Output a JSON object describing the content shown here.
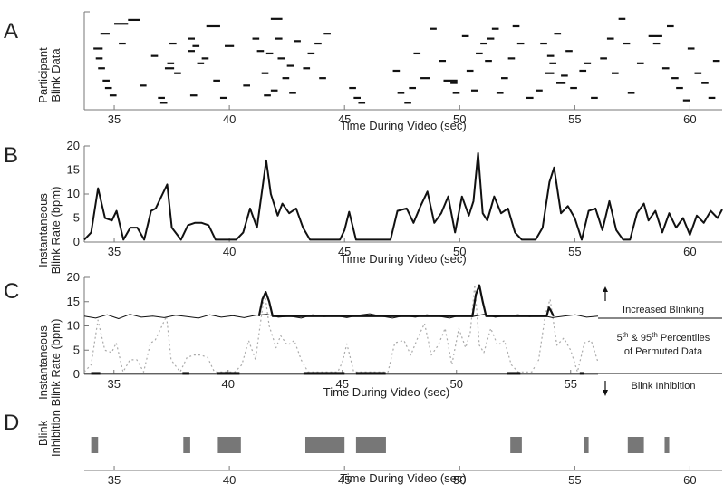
{
  "chart_data": [
    {
      "panel": "A",
      "type": "scatter",
      "xlabel": "Time During Video (sec)",
      "ylabel_lines": [
        "Participant",
        "Blink Data"
      ],
      "xlim": [
        33.7,
        61.4
      ],
      "xticks": [
        35,
        40,
        45,
        50,
        55,
        60
      ],
      "blinks": [
        [
          34.1,
          11.5,
          0.4
        ],
        [
          34.2,
          9.5,
          0.3
        ],
        [
          34.3,
          7.5,
          0.3
        ],
        [
          34.5,
          5.0,
          0.3
        ],
        [
          34.6,
          3.5,
          0.3
        ],
        [
          34.8,
          2.0,
          0.3
        ],
        [
          34.4,
          14.5,
          0.4
        ],
        [
          35.0,
          16.5,
          0.6
        ],
        [
          35.2,
          12.5,
          0.3
        ],
        [
          35.6,
          17.3,
          0.5
        ],
        [
          36.1,
          4.0,
          0.3
        ],
        [
          36.6,
          10.0,
          0.3
        ],
        [
          36.9,
          1.5,
          0.3
        ],
        [
          37.0,
          0.5,
          0.3
        ],
        [
          37.2,
          7.5,
          0.4
        ],
        [
          37.3,
          8.5,
          0.3
        ],
        [
          37.4,
          12.5,
          0.3
        ],
        [
          37.6,
          6.5,
          0.3
        ],
        [
          38.2,
          11.0,
          0.3
        ],
        [
          38.4,
          12.0,
          0.3
        ],
        [
          38.6,
          8.5,
          0.3
        ],
        [
          38.8,
          9.5,
          0.3
        ],
        [
          38.2,
          13.5,
          0.3
        ],
        [
          39.0,
          16.0,
          0.6
        ],
        [
          38.3,
          2.0,
          0.3
        ],
        [
          39.3,
          5.0,
          0.3
        ],
        [
          39.6,
          1.5,
          0.3
        ],
        [
          39.8,
          12.0,
          0.4
        ],
        [
          40.6,
          4.0,
          0.3
        ],
        [
          41.0,
          13.5,
          0.3
        ],
        [
          41.2,
          11.0,
          0.3
        ],
        [
          41.4,
          6.5,
          0.3
        ],
        [
          41.6,
          10.5,
          0.3
        ],
        [
          41.8,
          3.0,
          0.3
        ],
        [
          41.8,
          17.5,
          0.5
        ],
        [
          42.0,
          13.5,
          0.3
        ],
        [
          42.1,
          9.5,
          0.3
        ],
        [
          42.3,
          5.5,
          0.3
        ],
        [
          42.5,
          8.0,
          0.3
        ],
        [
          42.6,
          2.5,
          0.3
        ],
        [
          42.8,
          13.0,
          0.3
        ],
        [
          41.5,
          2.0,
          0.3
        ],
        [
          43.2,
          7.5,
          0.3
        ],
        [
          43.4,
          10.5,
          0.3
        ],
        [
          43.7,
          12.5,
          0.3
        ],
        [
          43.9,
          5.5,
          0.3
        ],
        [
          44.1,
          14.5,
          0.3
        ],
        [
          45.2,
          3.5,
          0.3
        ],
        [
          45.4,
          1.5,
          0.3
        ],
        [
          45.6,
          0.5,
          0.3
        ],
        [
          47.1,
          7.0,
          0.3
        ],
        [
          47.3,
          2.5,
          0.3
        ],
        [
          47.6,
          0.5,
          0.3
        ],
        [
          47.8,
          3.5,
          0.3
        ],
        [
          48.0,
          10.5,
          0.3
        ],
        [
          48.3,
          5.5,
          0.4
        ],
        [
          48.7,
          15.5,
          0.3
        ],
        [
          49.1,
          9.0,
          0.3
        ],
        [
          49.3,
          5.0,
          0.6
        ],
        [
          49.6,
          4.5,
          0.3
        ],
        [
          49.7,
          2.5,
          0.3
        ],
        [
          50.1,
          14.0,
          0.3
        ],
        [
          50.3,
          7.0,
          0.3
        ],
        [
          50.5,
          3.0,
          0.3
        ],
        [
          50.7,
          10.5,
          0.3
        ],
        [
          50.9,
          12.5,
          0.3
        ],
        [
          51.1,
          9.0,
          0.3
        ],
        [
          51.2,
          13.5,
          0.3
        ],
        [
          51.4,
          15.5,
          0.3
        ],
        [
          51.6,
          2.5,
          0.3
        ],
        [
          51.8,
          5.5,
          0.3
        ],
        [
          52.1,
          9.5,
          0.3
        ],
        [
          52.3,
          16.0,
          0.3
        ],
        [
          52.5,
          12.5,
          0.3
        ],
        [
          52.9,
          1.5,
          0.3
        ],
        [
          53.3,
          3.0,
          0.3
        ],
        [
          53.5,
          12.5,
          0.3
        ],
        [
          53.7,
          6.5,
          0.4
        ],
        [
          53.8,
          10.0,
          0.3
        ],
        [
          53.9,
          8.5,
          0.3
        ],
        [
          54.1,
          14.5,
          0.3
        ],
        [
          54.2,
          4.5,
          0.4
        ],
        [
          54.4,
          6.0,
          0.3
        ],
        [
          54.6,
          11.0,
          0.3
        ],
        [
          54.8,
          3.5,
          0.3
        ],
        [
          55.2,
          7.0,
          0.3
        ],
        [
          55.4,
          8.5,
          0.3
        ],
        [
          55.7,
          1.5,
          0.3
        ],
        [
          56.1,
          9.5,
          0.3
        ],
        [
          56.4,
          13.5,
          0.3
        ],
        [
          56.6,
          6.5,
          0.3
        ],
        [
          56.9,
          17.5,
          0.3
        ],
        [
          57.1,
          12.5,
          0.3
        ],
        [
          57.3,
          2.5,
          0.3
        ],
        [
          57.7,
          8.5,
          0.3
        ],
        [
          58.2,
          14.0,
          0.6
        ],
        [
          58.4,
          12.5,
          0.3
        ],
        [
          58.8,
          7.5,
          0.3
        ],
        [
          59.0,
          16.0,
          0.3
        ],
        [
          59.2,
          5.5,
          0.3
        ],
        [
          59.4,
          3.5,
          0.3
        ],
        [
          59.7,
          1.0,
          0.3
        ],
        [
          59.9,
          11.5,
          0.3
        ],
        [
          60.2,
          6.5,
          0.3
        ],
        [
          60.5,
          4.5,
          0.3
        ],
        [
          60.8,
          1.5,
          0.3
        ],
        [
          61.0,
          9.0,
          0.3
        ]
      ]
    },
    {
      "panel": "B",
      "type": "line",
      "xlabel": "Time During Video (sec)",
      "ylabel_lines": [
        "Instantaneous",
        "Blink Rate (bpm)"
      ],
      "xlim": [
        33.7,
        61.4
      ],
      "ylim": [
        0,
        20
      ],
      "xticks": [
        35,
        40,
        45,
        50,
        55,
        60
      ],
      "yticks": [
        0,
        5,
        10,
        15,
        20
      ],
      "series": [
        {
          "x": [
            33.7,
            34.0,
            34.3,
            34.6,
            34.9,
            35.1,
            35.4,
            35.7,
            36.0,
            36.3,
            36.6,
            36.8,
            37.1,
            37.3,
            37.5,
            37.9,
            38.2,
            38.5,
            38.8,
            39.1,
            39.4,
            39.7,
            40.0,
            40.3,
            40.6,
            40.9,
            41.2,
            41.4,
            41.6,
            41.8,
            42.1,
            42.3,
            42.6,
            42.9,
            43.2,
            43.5,
            44.0,
            44.5,
            44.8,
            45.0,
            45.2,
            45.5,
            46.0,
            46.4,
            46.7,
            47.0,
            47.3,
            47.7,
            48.0,
            48.3,
            48.6,
            48.9,
            49.2,
            49.5,
            49.8,
            50.1,
            50.4,
            50.6,
            50.8,
            51.0,
            51.2,
            51.5,
            51.8,
            52.1,
            52.4,
            52.7,
            53.0,
            53.3,
            53.6,
            53.9,
            54.1,
            54.4,
            54.7,
            55.0,
            55.3,
            55.6,
            55.9,
            56.2,
            56.5,
            56.8,
            57.1,
            57.4,
            57.7,
            58.0,
            58.2,
            58.5,
            58.8,
            59.1,
            59.4,
            59.7,
            60.0,
            60.3,
            60.6,
            60.9,
            61.2,
            61.4
          ],
          "y": [
            0.5,
            2.0,
            11.2,
            5.0,
            4.5,
            6.5,
            0.5,
            3.0,
            3.0,
            0.5,
            6.5,
            7.0,
            10.0,
            12.0,
            3.0,
            0.5,
            3.5,
            4.0,
            4.0,
            3.5,
            0.5,
            0.5,
            0.5,
            0.5,
            2.0,
            7.0,
            3.0,
            10.0,
            17.0,
            10.0,
            5.5,
            8.0,
            6.0,
            7.0,
            3.0,
            0.5,
            0.5,
            0.5,
            0.5,
            2.5,
            6.3,
            0.5,
            0.5,
            0.5,
            0.5,
            0.5,
            6.5,
            7.0,
            4.0,
            7.5,
            10.5,
            4.0,
            6.0,
            9.5,
            2.0,
            9.5,
            5.5,
            8.5,
            18.5,
            6.0,
            4.5,
            9.5,
            6.0,
            7.0,
            2.0,
            0.5,
            0.5,
            0.5,
            3.0,
            12.5,
            15.5,
            6.0,
            7.5,
            5.0,
            0.5,
            6.5,
            7.0,
            2.5,
            8.5,
            2.5,
            0.5,
            0.5,
            6.0,
            8.0,
            4.5,
            6.5,
            2.0,
            6.0,
            3.0,
            5.0,
            1.5,
            5.5,
            4.0,
            6.5,
            5.0,
            6.8
          ]
        }
      ]
    },
    {
      "panel": "C",
      "type": "line",
      "xlabel": "Time During Video (sec)",
      "ylabel_lines": [
        "Instantaneous",
        "Blink Rate (bpm)"
      ],
      "xlim": [
        33.7,
        56.2
      ],
      "ylim": [
        0,
        20
      ],
      "xticks": [
        35,
        40,
        45,
        50,
        55
      ],
      "yticks": [
        0,
        5,
        10,
        15,
        20
      ],
      "series": [
        {
          "style": "dotted",
          "x": [
            33.7,
            34.0,
            34.3,
            34.6,
            34.9,
            35.1,
            35.4,
            35.7,
            36.0,
            36.3,
            36.6,
            36.8,
            37.1,
            37.3,
            37.5,
            37.9,
            38.2,
            38.5,
            38.8,
            39.1,
            39.4,
            39.7,
            40.0,
            40.3,
            40.6,
            40.9,
            41.2,
            41.4,
            41.6,
            41.8,
            42.1,
            42.3,
            42.6,
            42.9,
            43.2,
            43.5,
            44.0,
            44.5,
            44.8,
            45.0,
            45.2,
            45.5,
            46.0,
            46.4,
            46.7,
            47.0,
            47.3,
            47.7,
            48.0,
            48.3,
            48.6,
            48.9,
            49.2,
            49.5,
            49.8,
            50.1,
            50.4,
            50.6,
            50.8,
            51.0,
            51.2,
            51.5,
            51.8,
            52.1,
            52.4,
            52.7,
            53.0,
            53.3,
            53.6,
            53.9,
            54.1,
            54.4,
            54.7,
            55.0,
            55.3,
            55.6,
            55.9,
            56.2
          ],
          "y": [
            0.5,
            2.0,
            11.2,
            5.0,
            4.5,
            6.5,
            0.5,
            3.0,
            3.0,
            0.5,
            6.5,
            7.0,
            10.0,
            12.0,
            3.0,
            0.5,
            3.5,
            4.0,
            4.0,
            3.5,
            0.5,
            0.5,
            0.5,
            0.5,
            2.0,
            7.0,
            3.0,
            10.0,
            17.0,
            10.0,
            5.5,
            8.0,
            6.0,
            7.0,
            3.0,
            0.5,
            0.5,
            0.5,
            0.5,
            2.5,
            6.3,
            0.5,
            0.5,
            0.5,
            0.5,
            0.5,
            6.5,
            7.0,
            4.0,
            7.5,
            10.5,
            4.0,
            6.0,
            9.5,
            2.0,
            9.5,
            5.5,
            8.5,
            18.5,
            6.0,
            4.5,
            9.5,
            6.0,
            7.0,
            2.0,
            0.5,
            0.5,
            0.5,
            3.0,
            12.5,
            15.5,
            6.0,
            7.5,
            5.0,
            0.5,
            6.5,
            7.0,
            2.5
          ]
        },
        {
          "style": "thin",
          "x": [
            33.7,
            34.2,
            34.7,
            35.2,
            35.7,
            36.2,
            36.7,
            37.2,
            37.7,
            38.2,
            38.7,
            39.2,
            39.7,
            40.2,
            40.7,
            41.2,
            41.7,
            42.2,
            42.7,
            43.2,
            43.7,
            44.2,
            44.7,
            45.2,
            45.7,
            46.2,
            46.7,
            47.2,
            47.7,
            48.2,
            48.7,
            49.2,
            49.7,
            50.2,
            50.7,
            51.2,
            51.7,
            52.2,
            52.7,
            53.2,
            53.7,
            54.2,
            54.7,
            55.2,
            55.7,
            56.2
          ],
          "y": [
            12.0,
            11.6,
            12.3,
            11.5,
            12.4,
            11.8,
            12.0,
            11.7,
            12.2,
            11.9,
            11.6,
            12.3,
            11.8,
            12.1,
            11.7,
            12.2,
            12.4,
            11.8,
            12.0,
            11.6,
            12.3,
            11.9,
            12.1,
            11.7,
            12.2,
            12.5,
            12.0,
            11.6,
            12.1,
            11.8,
            12.3,
            12.0,
            11.6,
            12.2,
            11.9,
            12.4,
            11.8,
            12.1,
            12.3,
            11.9,
            12.2,
            11.7,
            12.0,
            12.3,
            11.8,
            12.0
          ]
        },
        {
          "style": "thin",
          "x": [
            33.7,
            56.2
          ],
          "y": [
            0.2,
            0.2
          ]
        },
        {
          "style": "bold",
          "name": "above",
          "x": [
            41.35,
            41.5,
            41.65,
            41.8,
            41.95,
            42.1,
            50.7,
            50.85,
            51.0,
            51.15,
            51.3,
            53.95,
            54.05,
            54.15,
            54.25
          ],
          "y": [
            12.0,
            15.5,
            17.0,
            15.0,
            12.0,
            12.0,
            12.0,
            16.5,
            18.4,
            15.0,
            12.0,
            12.0,
            13.8,
            13.0,
            12.0
          ]
        }
      ],
      "inhibition_segments_sec": [
        [
          34.0,
          34.4
        ],
        [
          38.0,
          38.3
        ],
        [
          39.5,
          40.5
        ],
        [
          43.3,
          45.1
        ],
        [
          45.6,
          46.9
        ],
        [
          52.2,
          52.8
        ],
        [
          55.4,
          55.6
        ]
      ],
      "legend": {
        "increased": "Increased Blinking",
        "percentiles_line1": "5",
        "percentiles_sup1": "th",
        "percentiles_mid": " & 95",
        "percentiles_sup2": "th",
        "percentiles_rest": " Percentiles",
        "percentiles_line2": "of Permuted Data",
        "inhibition": "Blink Inhibition"
      }
    },
    {
      "panel": "D",
      "type": "bar",
      "xlabel": "Time During Video (sec)",
      "ylabel_lines": [
        "Blink",
        "Inhibition"
      ],
      "xlim": [
        33.7,
        61.4
      ],
      "xticks": [
        35,
        40,
        45,
        50,
        55,
        60
      ],
      "intervals_sec": [
        [
          34.0,
          34.3
        ],
        [
          38.0,
          38.3
        ],
        [
          39.5,
          40.5
        ],
        [
          43.3,
          45.0
        ],
        [
          45.5,
          46.8
        ],
        [
          52.2,
          52.7
        ],
        [
          55.4,
          55.6
        ],
        [
          57.3,
          58.0
        ],
        [
          58.9,
          59.1
        ]
      ]
    }
  ],
  "colors": {
    "line": "#111111",
    "axis": "#777777",
    "dotted": "#aaaaaa",
    "inhibition_fill": "#777777"
  }
}
